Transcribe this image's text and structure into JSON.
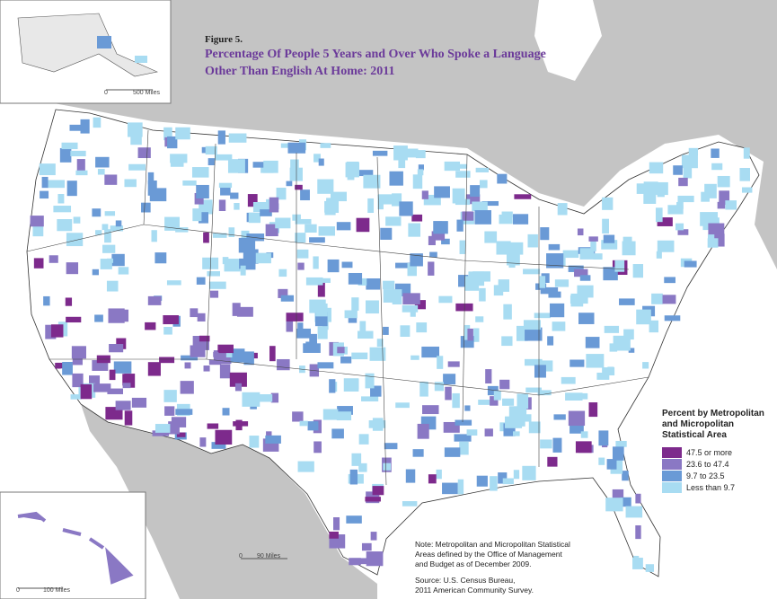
{
  "figure": "Figure 5.",
  "title": [
    "Percentage Of People 5 Years and Over Who Spoke a Language",
    "Other Than English At Home: 2011"
  ],
  "legend": {
    "title": [
      "Percent by Metropolitan",
      "and Micropolitan",
      "Statistical Area"
    ],
    "items": [
      {
        "label": "47.5 or more",
        "color": "#7d2a8c"
      },
      {
        "label": "23.6 to 47.4",
        "color": "#8a78c4"
      },
      {
        "label": "9.7 to 23.5",
        "color": "#6a9ad6"
      },
      {
        "label": "Less than 9.7",
        "color": "#a8dcf2"
      }
    ]
  },
  "note": [
    "Note: Metropolitan and Micropolitan Statistical",
    "Areas defined by the Office of Management",
    "and Budget as of December 2009."
  ],
  "source": [
    "Source: U.S. Census Bureau,",
    "2011 American Community Survey."
  ],
  "scales": {
    "main": {
      "zero": "0",
      "label": "90 Miles"
    },
    "alaska": {
      "zero": "0",
      "label": "500 Miles"
    },
    "hawaii": {
      "zero": "0",
      "label": "100 Miles"
    }
  }
}
